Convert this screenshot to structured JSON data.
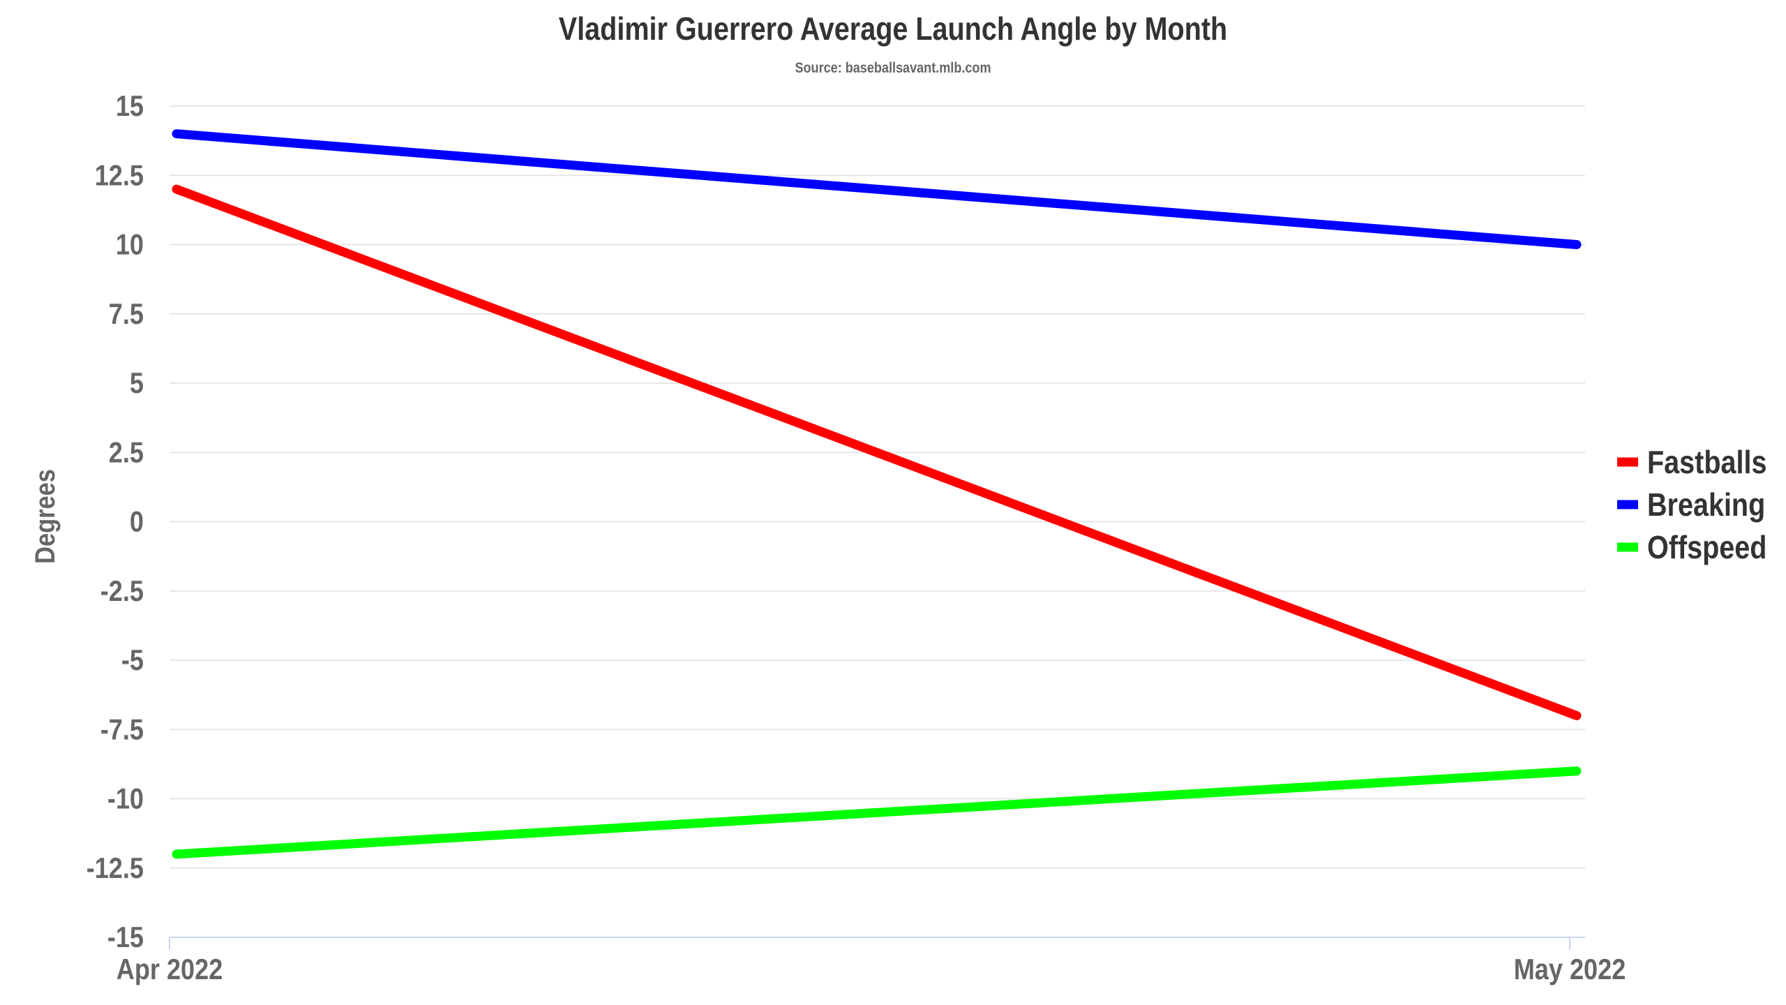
{
  "chart_data": {
    "type": "line",
    "title": "Vladimir Guerrero Average Launch Angle by Month",
    "subtitle": "Source: baseballsavant.mlb.com",
    "xlabel": "",
    "ylabel": "Degrees",
    "categories": [
      "Apr 2022",
      "May 2022"
    ],
    "y_ticks": [
      "15",
      "12.5",
      "10",
      "7.5",
      "5",
      "2.5",
      "0",
      "-2.5",
      "-5",
      "-7.5",
      "-10",
      "-12.5",
      "-15"
    ],
    "ylim": [
      -15,
      15
    ],
    "grid": true,
    "legend_position": "right",
    "series": [
      {
        "name": "Fastballs",
        "color": "#ff0000",
        "values": [
          12,
          -7
        ]
      },
      {
        "name": "Breaking",
        "color": "#0000ff",
        "values": [
          14,
          10
        ]
      },
      {
        "name": "Offspeed",
        "color": "#00ff00",
        "values": [
          -12,
          -9
        ]
      }
    ]
  }
}
